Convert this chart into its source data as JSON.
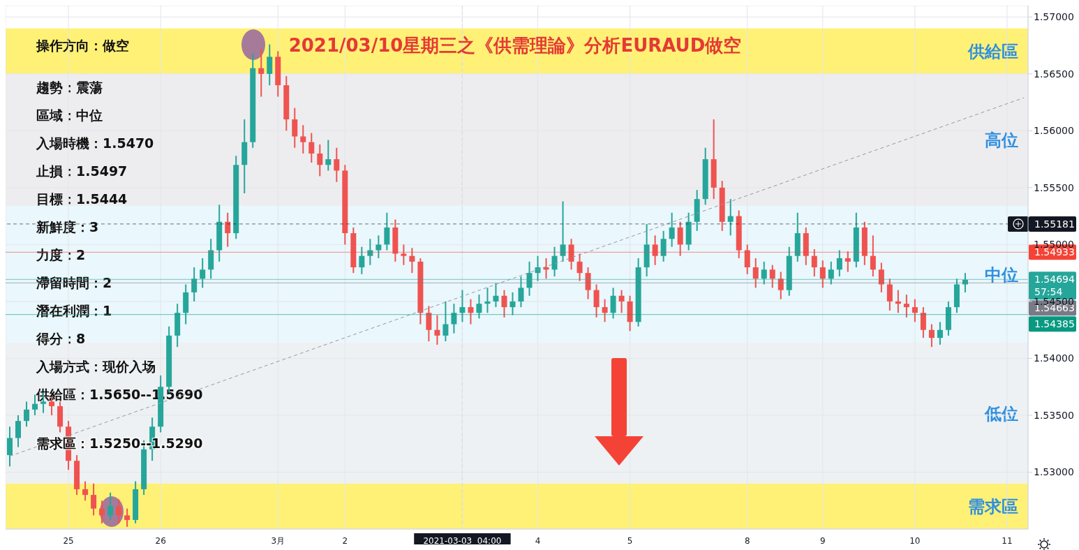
{
  "chart_data": {
    "type": "candlestick",
    "title": "2021/03/10星期三之《供需理論》分析EURAUD做空",
    "categories": [
      null,
      null,
      null,
      null,
      null,
      null,
      null,
      "25",
      null,
      null,
      null,
      null,
      null,
      null,
      null,
      null,
      null,
      null,
      "26",
      null,
      null,
      null,
      null,
      null,
      null,
      null,
      null,
      null,
      null,
      null,
      null,
      null,
      "3月",
      null,
      null,
      null,
      null,
      null,
      null,
      null,
      "2",
      null,
      null,
      null,
      null,
      null,
      null,
      null,
      null,
      null,
      null,
      null,
      null,
      null,
      "2021-03-03  04:00",
      null,
      null,
      null,
      null,
      null,
      null,
      null,
      null,
      "4",
      null,
      null,
      null,
      null,
      null,
      null,
      null,
      null,
      null,
      null,
      "5",
      null,
      null,
      null,
      null,
      null,
      null,
      null,
      null,
      null,
      null,
      null,
      null,
      null,
      "8",
      null,
      null,
      null,
      null,
      null,
      null,
      null,
      null,
      "9",
      null,
      null,
      null,
      null,
      null,
      null,
      null,
      null,
      null,
      null,
      "10",
      null,
      null,
      null,
      null,
      null,
      null,
      null,
      null,
      null,
      null,
      "11",
      null,
      null
    ],
    "ohlc": [
      [
        1.5315,
        1.534,
        1.5305,
        1.533
      ],
      [
        1.533,
        1.535,
        1.5322,
        1.5345
      ],
      [
        1.5345,
        1.5362,
        1.534,
        1.5355
      ],
      [
        1.5355,
        1.5368,
        1.535,
        1.536
      ],
      [
        1.536,
        1.537,
        1.5352,
        1.5362
      ],
      [
        1.5362,
        1.5366,
        1.535,
        1.5358
      ],
      [
        1.5358,
        1.5362,
        1.5335,
        1.534
      ],
      [
        1.534,
        1.5345,
        1.5302,
        1.531
      ],
      [
        1.531,
        1.5315,
        1.528,
        1.5285
      ],
      [
        1.5285,
        1.5292,
        1.5275,
        1.528
      ],
      [
        1.528,
        1.529,
        1.5262,
        1.5268
      ],
      [
        1.5268,
        1.5275,
        1.5255,
        1.5262
      ],
      [
        1.5262,
        1.5282,
        1.5258,
        1.527
      ],
      [
        1.527,
        1.5276,
        1.5255,
        1.5262
      ],
      [
        1.5262,
        1.5268,
        1.5252,
        1.5258
      ],
      [
        1.5258,
        1.5292,
        1.5255,
        1.5285
      ],
      [
        1.5285,
        1.5328,
        1.528,
        1.532
      ],
      [
        1.532,
        1.5348,
        1.531,
        1.534
      ],
      [
        1.534,
        1.5385,
        1.5335,
        1.5375
      ],
      [
        1.5375,
        1.5428,
        1.537,
        1.542
      ],
      [
        1.542,
        1.5448,
        1.541,
        1.544
      ],
      [
        1.544,
        1.5465,
        1.543,
        1.5458
      ],
      [
        1.5458,
        1.548,
        1.545,
        1.547
      ],
      [
        1.547,
        1.5488,
        1.5462,
        1.5478
      ],
      [
        1.5478,
        1.5505,
        1.547,
        1.5495
      ],
      [
        1.5495,
        1.5535,
        1.5485,
        1.552
      ],
      [
        1.552,
        1.5528,
        1.5498,
        1.551
      ],
      [
        1.551,
        1.5578,
        1.5505,
        1.557
      ],
      [
        1.557,
        1.561,
        1.5545,
        1.559
      ],
      [
        1.559,
        1.5668,
        1.5585,
        1.5655
      ],
      [
        1.5655,
        1.5672,
        1.563,
        1.565
      ],
      [
        1.565,
        1.5676,
        1.564,
        1.5665
      ],
      [
        1.5665,
        1.567,
        1.563,
        1.564
      ],
      [
        1.564,
        1.5648,
        1.56,
        1.561
      ],
      [
        1.561,
        1.562,
        1.5585,
        1.5595
      ],
      [
        1.5595,
        1.5605,
        1.558,
        1.559
      ],
      [
        1.559,
        1.5598,
        1.5572,
        1.558
      ],
      [
        1.558,
        1.5588,
        1.556,
        1.557
      ],
      [
        1.557,
        1.5592,
        1.5565,
        1.5575
      ],
      [
        1.5575,
        1.5585,
        1.5555,
        1.5565
      ],
      [
        1.5565,
        1.557,
        1.55,
        1.551
      ],
      [
        1.551,
        1.5515,
        1.5475,
        1.548
      ],
      [
        1.548,
        1.5498,
        1.5474,
        1.549
      ],
      [
        1.549,
        1.5505,
        1.5482,
        1.5495
      ],
      [
        1.5495,
        1.5508,
        1.5488,
        1.55
      ],
      [
        1.55,
        1.5528,
        1.5495,
        1.5515
      ],
      [
        1.5515,
        1.5522,
        1.5485,
        1.5492
      ],
      [
        1.5492,
        1.55,
        1.5482,
        1.549
      ],
      [
        1.549,
        1.5497,
        1.5475,
        1.5485
      ],
      [
        1.5485,
        1.5488,
        1.543,
        1.544
      ],
      [
        1.544,
        1.5446,
        1.5415,
        1.5425
      ],
      [
        1.5425,
        1.5438,
        1.5412,
        1.542
      ],
      [
        1.542,
        1.545,
        1.5415,
        1.543
      ],
      [
        1.543,
        1.5448,
        1.5422,
        1.544
      ],
      [
        1.544,
        1.546,
        1.5432,
        1.5445
      ],
      [
        1.5445,
        1.5452,
        1.543,
        1.544
      ],
      [
        1.544,
        1.5456,
        1.5435,
        1.5448
      ],
      [
        1.5448,
        1.5462,
        1.544,
        1.545
      ],
      [
        1.545,
        1.5466,
        1.5445,
        1.5455
      ],
      [
        1.5455,
        1.546,
        1.5436,
        1.5445
      ],
      [
        1.5445,
        1.5458,
        1.5438,
        1.545
      ],
      [
        1.545,
        1.5472,
        1.5445,
        1.5462
      ],
      [
        1.5462,
        1.5485,
        1.5455,
        1.5475
      ],
      [
        1.5475,
        1.549,
        1.5468,
        1.548
      ],
      [
        1.548,
        1.5488,
        1.547,
        1.5478
      ],
      [
        1.5478,
        1.5498,
        1.5472,
        1.549
      ],
      [
        1.549,
        1.5538,
        1.5485,
        1.55
      ],
      [
        1.55,
        1.5505,
        1.5478,
        1.5485
      ],
      [
        1.5485,
        1.5492,
        1.5468,
        1.5475
      ],
      [
        1.5475,
        1.548,
        1.5452,
        1.546
      ],
      [
        1.546,
        1.5465,
        1.5436,
        1.5445
      ],
      [
        1.5445,
        1.5452,
        1.5432,
        1.544
      ],
      [
        1.544,
        1.5462,
        1.5435,
        1.5455
      ],
      [
        1.5455,
        1.546,
        1.544,
        1.545
      ],
      [
        1.545,
        1.5455,
        1.5424,
        1.5432
      ],
      [
        1.5432,
        1.5488,
        1.5428,
        1.548
      ],
      [
        1.548,
        1.5518,
        1.5472,
        1.55
      ],
      [
        1.55,
        1.5508,
        1.5482,
        1.549
      ],
      [
        1.549,
        1.5512,
        1.5485,
        1.5505
      ],
      [
        1.5505,
        1.5528,
        1.5498,
        1.5515
      ],
      [
        1.5515,
        1.552,
        1.549,
        1.55
      ],
      [
        1.55,
        1.5528,
        1.5495,
        1.552
      ],
      [
        1.552,
        1.5548,
        1.5512,
        1.554
      ],
      [
        1.554,
        1.5585,
        1.5535,
        1.5575
      ],
      [
        1.5575,
        1.561,
        1.554,
        1.555
      ],
      [
        1.555,
        1.5556,
        1.5512,
        1.552
      ],
      [
        1.552,
        1.554,
        1.5508,
        1.5525
      ],
      [
        1.5525,
        1.553,
        1.5488,
        1.5495
      ],
      [
        1.5495,
        1.55,
        1.5474,
        1.548
      ],
      [
        1.548,
        1.5488,
        1.5462,
        1.547
      ],
      [
        1.547,
        1.5485,
        1.5465,
        1.5478
      ],
      [
        1.5478,
        1.5482,
        1.5462,
        1.547
      ],
      [
        1.547,
        1.5476,
        1.5452,
        1.546
      ],
      [
        1.546,
        1.5498,
        1.5455,
        1.549
      ],
      [
        1.549,
        1.5528,
        1.5485,
        1.551
      ],
      [
        1.551,
        1.5515,
        1.5482,
        1.549
      ],
      [
        1.549,
        1.5496,
        1.5472,
        1.548
      ],
      [
        1.548,
        1.5486,
        1.5462,
        1.547
      ],
      [
        1.547,
        1.5485,
        1.5465,
        1.5478
      ],
      [
        1.5478,
        1.5495,
        1.5472,
        1.5488
      ],
      [
        1.5488,
        1.5494,
        1.5476,
        1.5485
      ],
      [
        1.5485,
        1.5528,
        1.548,
        1.5515
      ],
      [
        1.5515,
        1.552,
        1.5482,
        1.549
      ],
      [
        1.549,
        1.5508,
        1.5472,
        1.5478
      ],
      [
        1.5478,
        1.5484,
        1.5458,
        1.5465
      ],
      [
        1.5465,
        1.547,
        1.5442,
        1.545
      ],
      [
        1.545,
        1.546,
        1.544,
        1.5448
      ],
      [
        1.5448,
        1.5456,
        1.5436,
        1.5445
      ],
      [
        1.5445,
        1.5452,
        1.5432,
        1.544
      ],
      [
        1.544,
        1.5445,
        1.5418,
        1.5425
      ],
      [
        1.5425,
        1.543,
        1.541,
        1.5418
      ],
      [
        1.5418,
        1.5432,
        1.5412,
        1.5425
      ],
      [
        1.5425,
        1.545,
        1.542,
        1.5445
      ],
      [
        1.5445,
        1.547,
        1.544,
        1.5465
      ],
      [
        1.5465,
        1.5475,
        1.5458,
        1.5469
      ],
      null,
      null,
      null,
      null,
      null,
      null,
      null
    ],
    "series": [
      {
        "type": "line",
        "color": "#9598a1",
        "line_style": "dashed",
        "values": [
          1.5314,
          null,
          null,
          null,
          null,
          null,
          null,
          null,
          null,
          null,
          null,
          null,
          null,
          null,
          null,
          null,
          null,
          null,
          null,
          null,
          null,
          null,
          null,
          null,
          null,
          null,
          null,
          null,
          null,
          null,
          null,
          null,
          null,
          null,
          null,
          null,
          null,
          null,
          null,
          null,
          null,
          null,
          null,
          null,
          null,
          null,
          null,
          null,
          null,
          null,
          null,
          null,
          null,
          null,
          null,
          null,
          null,
          null,
          null,
          null,
          null,
          null,
          null,
          null,
          null,
          null,
          null,
          null,
          null,
          null,
          null,
          null,
          null,
          null,
          null,
          null,
          null,
          null,
          null,
          null,
          null,
          null,
          null,
          null,
          null,
          null,
          null,
          null,
          null,
          null,
          null,
          null,
          null,
          null,
          null,
          null,
          null,
          null,
          null,
          null,
          null,
          null,
          null,
          null,
          null,
          null,
          null,
          null,
          null,
          null,
          null,
          null,
          null,
          null,
          null,
          null,
          null,
          null,
          null,
          null,
          null,
          1.5629
        ]
      }
    ],
    "ylim": [
      1.525,
      1.571
    ],
    "yticks": [
      {
        "value": 1.53,
        "label": "1.53000"
      },
      {
        "value": 1.535,
        "label": "1.53500"
      },
      {
        "value": 1.54,
        "label": "1.54000"
      },
      {
        "value": 1.545,
        "label": "1.54500"
      },
      {
        "value": 1.55,
        "label": "1.55000"
      },
      {
        "value": 1.555,
        "label": "1.55500"
      },
      {
        "value": 1.56,
        "label": "1.56000"
      },
      {
        "value": 1.565,
        "label": "1.56500"
      },
      {
        "value": 1.57,
        "label": "1.57000"
      }
    ],
    "grid": true,
    "bands": [
      {
        "axis": "y",
        "from": 1.565,
        "to": 1.569,
        "label": "供給區",
        "color": "#fff176"
      },
      {
        "axis": "y",
        "from": 1.5534,
        "to": 1.565,
        "label": "高位",
        "color": "#ededf0"
      },
      {
        "axis": "y",
        "from": 1.5414,
        "to": 1.5534,
        "label": "中位",
        "color": "#eaf7fc"
      },
      {
        "axis": "y",
        "from": 1.529,
        "to": 1.5414,
        "label": "低位",
        "color": "#eef1f3"
      },
      {
        "axis": "y",
        "from": 1.525,
        "to": 1.529,
        "label": "需求區",
        "color": "#fff176"
      }
    ],
    "ref_lines": [
      {
        "axis": "x",
        "value": "2021-03-03  04:00",
        "color": "#131722",
        "line_style": "dashed"
      },
      {
        "axis": "y",
        "value": 1.55181,
        "label": "1.55181",
        "color": "#131722",
        "line_style": "dashed"
      },
      {
        "axis": "y",
        "value": 1.54933,
        "label": "1.54933",
        "color": "#f44336",
        "line_style": "solid"
      },
      {
        "axis": "y",
        "value": 1.54694,
        "label": "1.54694 57:54",
        "color": "#26a69a",
        "line_style": "solid"
      },
      {
        "axis": "y",
        "value": 1.54663,
        "label": "1.54663",
        "color": "#787b86",
        "line_style": "solid"
      },
      {
        "axis": "y",
        "value": 1.54385,
        "label": "1.54385",
        "color": "#089981",
        "line_style": "solid"
      }
    ],
    "annotations": [
      "操作方向：做空",
      "趨勢：震蕩",
      "區域：中位",
      "入場時機：1.5470",
      "止損：1.5497",
      "目標：1.5444",
      "新鮮度：3",
      "力度：2",
      "滯留時間：2",
      "潛在利潤：1",
      "得分：8",
      "入場方式：现价入场",
      "供給區：1.5650--1.5690",
      "需求區：1.5250--1.5290"
    ]
  }
}
